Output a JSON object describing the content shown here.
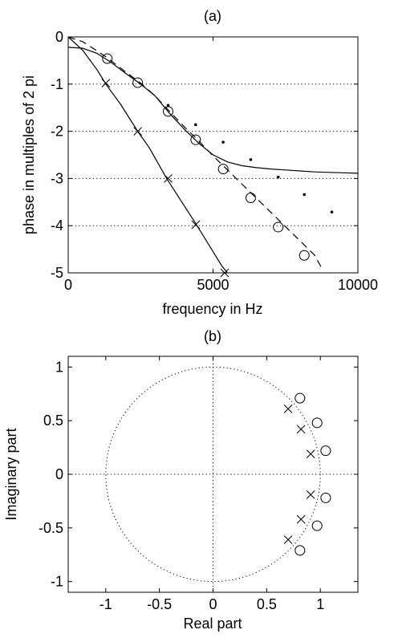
{
  "chart_data": [
    {
      "type": "line",
      "title": "(a)",
      "xlabel": "frequency in Hz",
      "ylabel": "phase in multiples of 2 pi",
      "xlim": [
        0,
        10000
      ],
      "ylim": [
        -5,
        0
      ],
      "xticks": [
        0,
        5000,
        10000
      ],
      "xtick_labels": [
        "0",
        "5000",
        "10000"
      ],
      "yticks": [
        0,
        -1,
        -2,
        -3,
        -4,
        -5
      ],
      "ytick_labels": [
        "0",
        "-1",
        "-2",
        "-3",
        "-4",
        "-5"
      ],
      "grid": "dotted horizontal lines at y = -1, -2, -3, -4",
      "series": [
        {
          "style": "solid line (upper)",
          "x": [
            0,
            500,
            1000,
            1500,
            2000,
            2500,
            3000,
            3500,
            4000,
            4500,
            5000,
            5500,
            6000,
            6500,
            7000,
            7500,
            8000,
            8500,
            9000,
            9500,
            10000
          ],
          "y": [
            -0.22,
            -0.24,
            -0.35,
            -0.55,
            -0.78,
            -1.0,
            -1.25,
            -1.62,
            -1.95,
            -2.25,
            -2.5,
            -2.65,
            -2.73,
            -2.77,
            -2.8,
            -2.82,
            -2.84,
            -2.86,
            -2.87,
            -2.88,
            -2.89
          ]
        },
        {
          "style": "solid line (steep)",
          "x": [
            0,
            500,
            1000,
            1300,
            1800,
            2400,
            2800,
            3400,
            3900,
            4400,
            4900,
            5300,
            5500
          ],
          "y": [
            0,
            -0.28,
            -0.7,
            -1.0,
            -1.42,
            -2.0,
            -2.35,
            -3.0,
            -3.48,
            -3.95,
            -4.45,
            -4.85,
            -5.0
          ]
        },
        {
          "style": "dashed line",
          "x": [
            0,
            500,
            1000,
            1300,
            2000,
            2500,
            3000,
            3500,
            4000,
            4500,
            5000,
            5500,
            6000,
            6500,
            7000,
            7500,
            8000,
            8500,
            8800
          ],
          "y": [
            0,
            -0.1,
            -0.3,
            -0.42,
            -0.75,
            -0.98,
            -1.25,
            -1.58,
            -1.9,
            -2.2,
            -2.52,
            -2.82,
            -3.12,
            -3.42,
            -3.72,
            -4.02,
            -4.32,
            -4.62,
            -4.95
          ]
        },
        {
          "style": "circle markers",
          "x": [
            1350,
            2400,
            3450,
            4400,
            5350,
            6300,
            7250,
            8150
          ],
          "y": [
            -0.46,
            -0.97,
            -1.58,
            -2.18,
            -2.8,
            -3.41,
            -4.03,
            -4.63
          ]
        },
        {
          "style": "x markers",
          "x": [
            1300,
            2400,
            3450,
            4400,
            5400
          ],
          "y": [
            -0.98,
            -2.0,
            -3.0,
            -3.98,
            -5.0
          ]
        },
        {
          "style": "dot markers",
          "x": [
            3450,
            4400,
            5350,
            6300,
            7250,
            8150,
            9100
          ],
          "y": [
            -1.45,
            -1.86,
            -2.23,
            -2.6,
            -2.97,
            -3.34,
            -3.71
          ]
        }
      ]
    },
    {
      "type": "scatter",
      "title": "(b)",
      "xlabel": "Real part",
      "ylabel": "Imaginary part",
      "xlim": [
        -1.35,
        1.35
      ],
      "ylim": [
        -1.1,
        1.1
      ],
      "xticks": [
        -1,
        -0.5,
        0,
        0.5,
        1
      ],
      "xtick_labels": [
        "-1",
        "-0.5",
        "0",
        "0.5",
        "1"
      ],
      "yticks": [
        1,
        0.5,
        0,
        -0.5,
        -1
      ],
      "ytick_labels": [
        "1",
        "0.5",
        "0",
        "-0.5",
        "-1"
      ],
      "grid": "dotted unit circle and dotted axes",
      "series": [
        {
          "style": "circle markers",
          "x": [
            0.81,
            0.97,
            1.05,
            1.05,
            0.97,
            0.81
          ],
          "y": [
            0.71,
            0.48,
            0.22,
            -0.22,
            -0.48,
            -0.71
          ]
        },
        {
          "style": "x markers",
          "x": [
            0.7,
            0.82,
            0.91,
            0.91,
            0.82,
            0.7
          ],
          "y": [
            0.61,
            0.42,
            0.19,
            -0.19,
            -0.42,
            -0.61
          ]
        }
      ]
    }
  ]
}
